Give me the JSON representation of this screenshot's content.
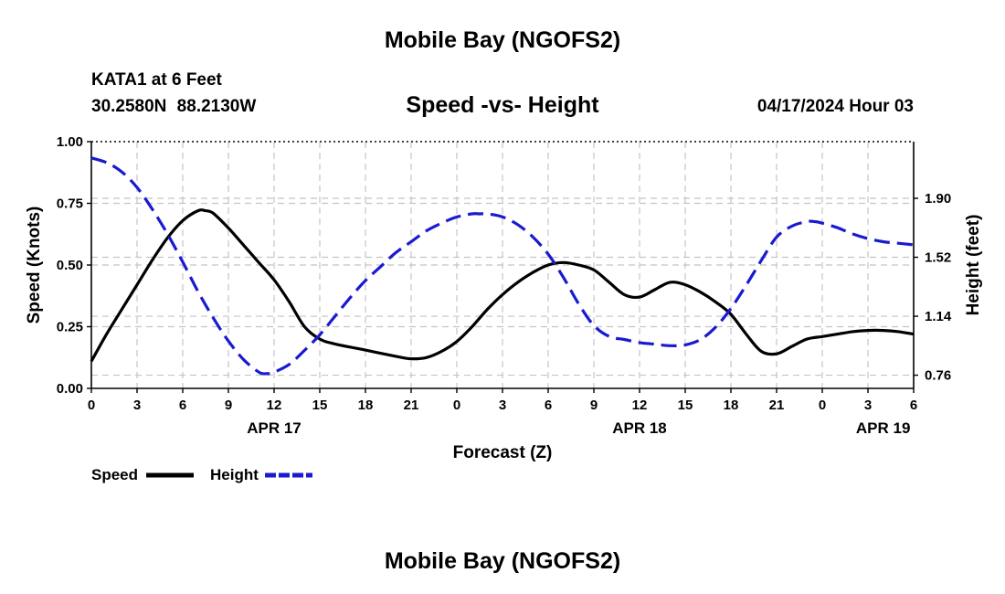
{
  "header": {
    "top_title": "Mobile Bay (NGOFS2)",
    "station_name": "KATA1 at 6 Feet",
    "station_coords": "30.2580N  88.2130W",
    "chart_title": "Speed -vs- Height",
    "datetime": "04/17/2024 Hour 03",
    "bottom_title": "Mobile Bay (NGOFS2)"
  },
  "chart_data": {
    "type": "line",
    "title": "Speed -vs- Height",
    "xlabel": "Forecast (Z)",
    "ylabel": "Speed (Knots)",
    "y2label": "Height (feet)",
    "x_range": [
      0,
      54
    ],
    "ylim": [
      0,
      1.0
    ],
    "y2lim": [
      0.675,
      2.265
    ],
    "x_tick_values": [
      0,
      3,
      6,
      9,
      12,
      15,
      18,
      21,
      24,
      27,
      30,
      33,
      36,
      39,
      42,
      45,
      48,
      51,
      54
    ],
    "x_tick_labels": [
      "0",
      "3",
      "6",
      "9",
      "12",
      "15",
      "18",
      "21",
      "0",
      "3",
      "6",
      "9",
      "12",
      "15",
      "18",
      "21",
      "0",
      "3",
      "6"
    ],
    "date_labels": [
      {
        "x": 12,
        "label": "APR 17"
      },
      {
        "x": 36,
        "label": "APR 18"
      },
      {
        "x": 52,
        "label": "APR 19"
      }
    ],
    "y_ticks": [
      0.0,
      0.25,
      0.5,
      0.75,
      1.0
    ],
    "y_tick_labels": [
      "0.00",
      "0.25",
      "0.50",
      "0.75",
      "1.00"
    ],
    "y2_ticks": [
      0.76,
      1.14,
      1.52,
      1.9
    ],
    "y2_tick_labels": [
      "0.76",
      "1.14",
      "1.52",
      "1.90"
    ],
    "grid": true,
    "legend_position": "bottom-left",
    "series": [
      {
        "name": "Speed",
        "axis": "left",
        "color": "#000000",
        "style": "solid",
        "x": [
          0,
          1,
          2,
          3,
          4,
          5,
          6,
          7,
          7.5,
          8,
          9,
          10,
          11,
          12,
          13,
          14,
          15,
          16,
          18,
          20,
          21,
          22,
          23,
          24,
          25,
          26,
          27,
          28,
          29,
          30,
          31,
          32,
          33,
          34,
          35,
          36,
          37,
          38,
          39,
          40,
          41,
          42,
          43,
          44,
          45,
          46,
          47,
          48,
          49,
          50,
          51,
          52,
          53,
          54
        ],
        "values": [
          0.11,
          0.22,
          0.32,
          0.42,
          0.52,
          0.61,
          0.68,
          0.72,
          0.72,
          0.71,
          0.65,
          0.58,
          0.51,
          0.44,
          0.35,
          0.25,
          0.2,
          0.18,
          0.155,
          0.13,
          0.12,
          0.125,
          0.15,
          0.19,
          0.25,
          0.32,
          0.38,
          0.43,
          0.47,
          0.5,
          0.51,
          0.5,
          0.48,
          0.43,
          0.38,
          0.37,
          0.4,
          0.43,
          0.42,
          0.39,
          0.35,
          0.3,
          0.22,
          0.15,
          0.14,
          0.17,
          0.2,
          0.21,
          0.22,
          0.23,
          0.235,
          0.235,
          0.23,
          0.22
        ]
      },
      {
        "name": "Height",
        "axis": "right",
        "color": "#1a1ad0",
        "style": "dashed",
        "x": [
          0,
          1,
          2,
          3,
          4,
          5,
          6,
          7,
          8,
          9,
          10,
          11,
          11.5,
          12,
          13,
          14,
          15,
          16,
          17,
          18,
          19,
          20,
          21,
          22,
          23,
          24,
          25,
          25.5,
          26,
          27,
          28,
          29,
          30,
          31,
          32,
          33,
          34,
          35,
          36,
          37,
          38,
          39,
          40,
          41,
          42,
          43,
          44,
          45,
          46,
          47,
          47.5,
          48,
          49,
          50,
          51,
          52,
          53,
          54
        ],
        "values": [
          2.16,
          2.13,
          2.07,
          1.97,
          1.83,
          1.67,
          1.49,
          1.3,
          1.13,
          0.98,
          0.86,
          0.78,
          0.77,
          0.78,
          0.83,
          0.92,
          1.02,
          1.14,
          1.26,
          1.37,
          1.46,
          1.55,
          1.62,
          1.69,
          1.74,
          1.78,
          1.8,
          1.8,
          1.8,
          1.78,
          1.73,
          1.65,
          1.54,
          1.39,
          1.22,
          1.08,
          1.01,
          0.99,
          0.97,
          0.96,
          0.95,
          0.955,
          0.99,
          1.07,
          1.19,
          1.34,
          1.5,
          1.65,
          1.72,
          1.75,
          1.75,
          1.74,
          1.71,
          1.67,
          1.64,
          1.62,
          1.61,
          1.6
        ]
      }
    ]
  }
}
